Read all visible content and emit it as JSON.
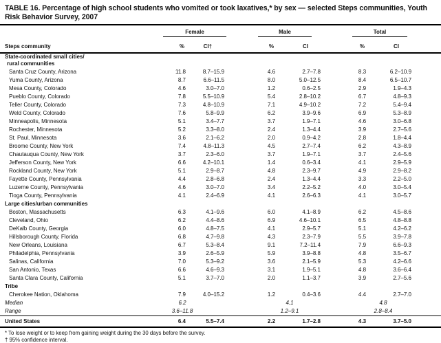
{
  "title": "TABLE 16. Percentage of high school students who vomited or took laxatives,* by sex — selected Steps communities, Youth Risk Behavior Survey, 2007",
  "header": {
    "community": "Steps community",
    "groups": [
      {
        "label": "Female",
        "pct": "%",
        "ci": "CI†"
      },
      {
        "label": "Male",
        "pct": "%",
        "ci": "CI"
      },
      {
        "label": "Total",
        "pct": "%",
        "ci": "CI"
      }
    ]
  },
  "sections": [
    {
      "header_lines": [
        "State-coordinated small cities/",
        "rural communities"
      ],
      "rows": [
        [
          "Santa Cruz County, Arizona",
          "11.8",
          "8.7–15.9",
          "4.6",
          "2.7–7.8",
          "8.3",
          "6.2–10.9"
        ],
        [
          "Yuma County, Arizona",
          "8.7",
          "6.6–11.5",
          "8.0",
          "5.0–12.5",
          "8.4",
          "6.5–10.7"
        ],
        [
          "Mesa County, Colorado",
          "4.6",
          "3.0–7.0",
          "1.2",
          "0.6–2.5",
          "2.9",
          "1.9–4.3"
        ],
        [
          "Pueblo County, Colorado",
          "7.8",
          "5.5–10.9",
          "5.4",
          "2.8–10.2",
          "6.7",
          "4.8–9.3"
        ],
        [
          "Teller County, Colorado",
          "7.3",
          "4.8–10.9",
          "7.1",
          "4.9–10.2",
          "7.2",
          "5.4–9.4"
        ],
        [
          "Weld County, Colorado",
          "7.6",
          "5.8–9.9",
          "6.2",
          "3.9–9.6",
          "6.9",
          "5.3–8.9"
        ],
        [
          "Minneapolis, Minnesota",
          "5.1",
          "3.4–7.7",
          "3.7",
          "1.9–7.1",
          "4.6",
          "3.0–6.8"
        ],
        [
          "Rochester, Minnesota",
          "5.2",
          "3.3–8.0",
          "2.4",
          "1.3–4.4",
          "3.9",
          "2.7–5.6"
        ],
        [
          "St. Paul, Minnesota",
          "3.6",
          "2.1–6.2",
          "2.0",
          "0.9–4.2",
          "2.8",
          "1.8–4.4"
        ],
        [
          "Broome County, New York",
          "7.4",
          "4.8–11.3",
          "4.5",
          "2.7–7.4",
          "6.2",
          "4.3–8.9"
        ],
        [
          "Chautauqua County, New York",
          "3.7",
          "2.3–6.0",
          "3.7",
          "1.9–7.1",
          "3.7",
          "2.4–5.6"
        ],
        [
          "Jefferson County, New York",
          "6.6",
          "4.2–10.1",
          "1.4",
          "0.6–3.4",
          "4.1",
          "2.9–5.9"
        ],
        [
          "Rockland County, New York",
          "5.1",
          "2.9–8.7",
          "4.8",
          "2.3–9.7",
          "4.9",
          "2.9–8.2"
        ],
        [
          "Fayette County, Pennsylvania",
          "4.4",
          "2.8–6.8",
          "2.4",
          "1.3–4.4",
          "3.3",
          "2.2–5.0"
        ],
        [
          "Luzerne County, Pennsylvania",
          "4.6",
          "3.0–7.0",
          "3.4",
          "2.2–5.2",
          "4.0",
          "3.0–5.4"
        ],
        [
          "Tioga County, Pennsylvania",
          "4.1",
          "2.4–6.9",
          "4.1",
          "2.6–6.3",
          "4.1",
          "3.0–5.7"
        ]
      ]
    },
    {
      "header_lines": [
        "Large cities/urban communities"
      ],
      "rows": [
        [
          "Boston, Massachusetts",
          "6.3",
          "4.1–9.6",
          "6.0",
          "4.1–8.9",
          "6.2",
          "4.5–8.6"
        ],
        [
          "Cleveland, Ohio",
          "6.2",
          "4.4–8.6",
          "6.9",
          "4.6–10.1",
          "6.5",
          "4.8–8.8"
        ],
        [
          "DeKalb County, Georgia",
          "6.0",
          "4.8–7.5",
          "4.1",
          "2.9–5.7",
          "5.1",
          "4.2–6.2"
        ],
        [
          "Hillsborough County, Florida",
          "6.8",
          "4.7–9.8",
          "4.3",
          "2.3–7.9",
          "5.5",
          "3.9–7.8"
        ],
        [
          "New Orleans, Louisiana",
          "6.7",
          "5.3–8.4",
          "9.1",
          "7.2–11.4",
          "7.9",
          "6.6–9.3"
        ],
        [
          "Philadelphia, Pennsylvania",
          "3.9",
          "2.6–5.9",
          "5.9",
          "3.9–8.8",
          "4.8",
          "3.5–6.7"
        ],
        [
          "Salinas, California",
          "7.0",
          "5.3–9.2",
          "3.6",
          "2.1–5.9",
          "5.3",
          "4.2–6.6"
        ],
        [
          "San Antonio, Texas",
          "6.6",
          "4.6–9.3",
          "3.1",
          "1.9–5.1",
          "4.8",
          "3.6–6.4"
        ],
        [
          "Santa Clara County, California",
          "5.1",
          "3.7–7.0",
          "2.0",
          "1.1–3.7",
          "3.9",
          "2.7–5.6"
        ]
      ]
    },
    {
      "header_lines": [
        "Tribe"
      ],
      "rows": [
        [
          "Cherokee Nation, Oklahoma",
          "7.9",
          "4.0–15.2",
          "1.2",
          "0.4–3.6",
          "4.4",
          "2.7–7.0"
        ]
      ]
    }
  ],
  "summary": {
    "median": {
      "label": "Median",
      "values": [
        "6.2",
        "4.1",
        "4.8"
      ]
    },
    "range": {
      "label": "Range",
      "values": [
        "3.6–11.8",
        "1.2–9.1",
        "2.8–8.4"
      ]
    },
    "united_states": {
      "label": "United States",
      "values": [
        "6.4",
        "5.5–7.4",
        "2.2",
        "1.7–2.8",
        "4.3",
        "3.7–5.0"
      ]
    }
  },
  "footnotes": [
    "* To lose weight or to keep from gaining weight during the 30 days before the survey.",
    "† 95% confidence interval."
  ]
}
